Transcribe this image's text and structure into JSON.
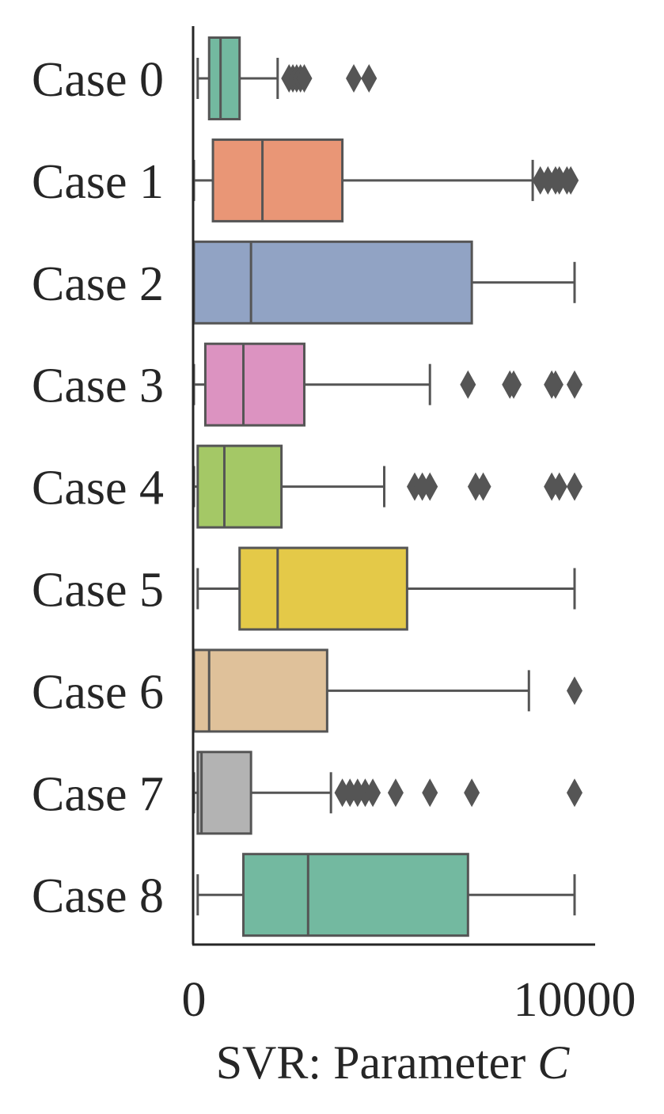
{
  "chart_data": {
    "type": "boxplot",
    "orientation": "horizontal",
    "xlabel": "SVR: Parameter",
    "xlabel_variable": "C",
    "xlim": [
      0,
      10500
    ],
    "xticks": [
      0,
      10000
    ],
    "xtick_labels": [
      "0",
      "10000"
    ],
    "grid": false,
    "legend": "none",
    "categories": [
      "Case 0",
      "Case 1",
      "Case 2",
      "Case 3",
      "Case 4",
      "Case 5",
      "Case 6",
      "Case 7",
      "Case 8"
    ],
    "boxes": [
      {
        "category": "Case 0",
        "color": "#73b9a0",
        "whisker_low": 100,
        "q1": 400,
        "median": 700,
        "q3": 1200,
        "whisker_high": 2200,
        "outliers": [
          2500,
          2600,
          2700,
          2800,
          2900,
          4200,
          4600
        ]
      },
      {
        "category": "Case 1",
        "color": "#e99676",
        "whisker_low": 0,
        "q1": 500,
        "median": 1800,
        "q3": 3900,
        "whisker_high": 8900,
        "outliers": [
          9100,
          9300,
          9500,
          9600,
          9800,
          9900
        ]
      },
      {
        "category": "Case 2",
        "color": "#91a3c4",
        "whisker_low": 0,
        "q1": 0,
        "median": 1500,
        "q3": 7300,
        "whisker_high": 10000,
        "outliers": []
      },
      {
        "category": "Case 3",
        "color": "#dc93c1",
        "whisker_low": 0,
        "q1": 300,
        "median": 1300,
        "q3": 2900,
        "whisker_high": 6200,
        "outliers": [
          7200,
          8300,
          8400,
          9400,
          9500,
          10000
        ]
      },
      {
        "category": "Case 4",
        "color": "#a4c866",
        "whisker_low": 0,
        "q1": 100,
        "median": 800,
        "q3": 2300,
        "whisker_high": 5000,
        "outliers": [
          5800,
          6000,
          6200,
          7400,
          7600,
          9400,
          9600,
          10000
        ]
      },
      {
        "category": "Case 5",
        "color": "#e4c948",
        "whisker_low": 100,
        "q1": 1200,
        "median": 2200,
        "q3": 5600,
        "whisker_high": 10000,
        "outliers": []
      },
      {
        "category": "Case 6",
        "color": "#dfc19a",
        "whisker_low": 0,
        "q1": 0,
        "median": 400,
        "q3": 3500,
        "whisker_high": 8800,
        "outliers": [
          10000
        ]
      },
      {
        "category": "Case 7",
        "color": "#b3b3b3",
        "whisker_low": 0,
        "q1": 100,
        "median": 200,
        "q3": 1500,
        "whisker_high": 3600,
        "outliers": [
          3900,
          4100,
          4300,
          4500,
          4700,
          5300,
          6200,
          7300,
          10000
        ]
      },
      {
        "category": "Case 8",
        "color": "#73b9a0",
        "whisker_low": 100,
        "q1": 1300,
        "median": 3000,
        "q3": 7200,
        "whisker_high": 10000,
        "outliers": []
      }
    ]
  }
}
